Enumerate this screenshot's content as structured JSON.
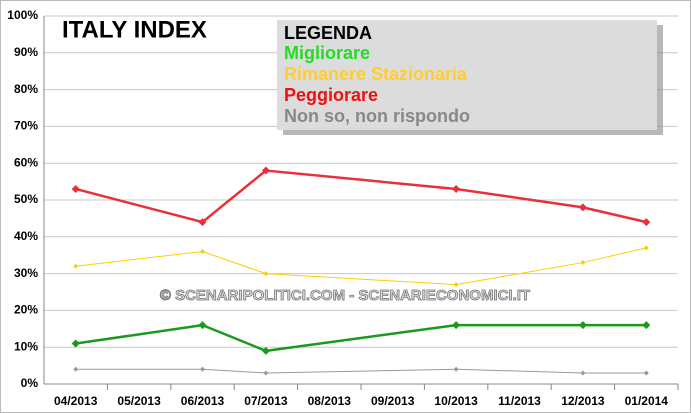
{
  "chart_data": {
    "type": "line",
    "title": "ITALY INDEX",
    "legend_title": "LEGENDA",
    "watermark": "© SCENARIPOLITICI.COM - SCENARIECONOMICI.IT",
    "categories": [
      "04/2013",
      "05/2013",
      "06/2013",
      "07/2013",
      "08/2013",
      "09/2013",
      "10/2013",
      "11/2013",
      "12/2013",
      "01/2014"
    ],
    "series": [
      {
        "name": "Migliorare",
        "color": "#1a9a1a",
        "legend_color": "#22dd22",
        "values": [
          11,
          null,
          16,
          9,
          null,
          null,
          16,
          null,
          16,
          16
        ]
      },
      {
        "name": "Rimanere Stazionaria",
        "color": "#ffcc00",
        "legend_color": "#ffcc33",
        "values": [
          32,
          null,
          36,
          30,
          null,
          null,
          27,
          null,
          33,
          37
        ]
      },
      {
        "name": "Peggiorare",
        "color": "#e8303a",
        "legend_color": "#ee1111",
        "values": [
          53,
          null,
          44,
          58,
          null,
          null,
          53,
          null,
          48,
          44
        ]
      },
      {
        "name": "Non so, non rispondo",
        "color": "#999999",
        "legend_color": "#888888",
        "values": [
          4,
          null,
          4,
          3,
          null,
          null,
          4,
          null,
          3,
          3
        ]
      }
    ],
    "ylim": [
      0,
      100
    ],
    "yticks": [
      {
        "value": 0,
        "label": "0%"
      },
      {
        "value": 10,
        "label": "10%"
      },
      {
        "value": 20,
        "label": "20%"
      },
      {
        "value": 30,
        "label": "30%"
      },
      {
        "value": 40,
        "label": "40%"
      },
      {
        "value": 50,
        "label": "50%"
      },
      {
        "value": 60,
        "label": "60%"
      },
      {
        "value": 70,
        "label": "70%"
      },
      {
        "value": 80,
        "label": "80%"
      },
      {
        "value": 90,
        "label": "90%"
      },
      {
        "value": 100,
        "label": "100%"
      }
    ],
    "grid": true
  }
}
